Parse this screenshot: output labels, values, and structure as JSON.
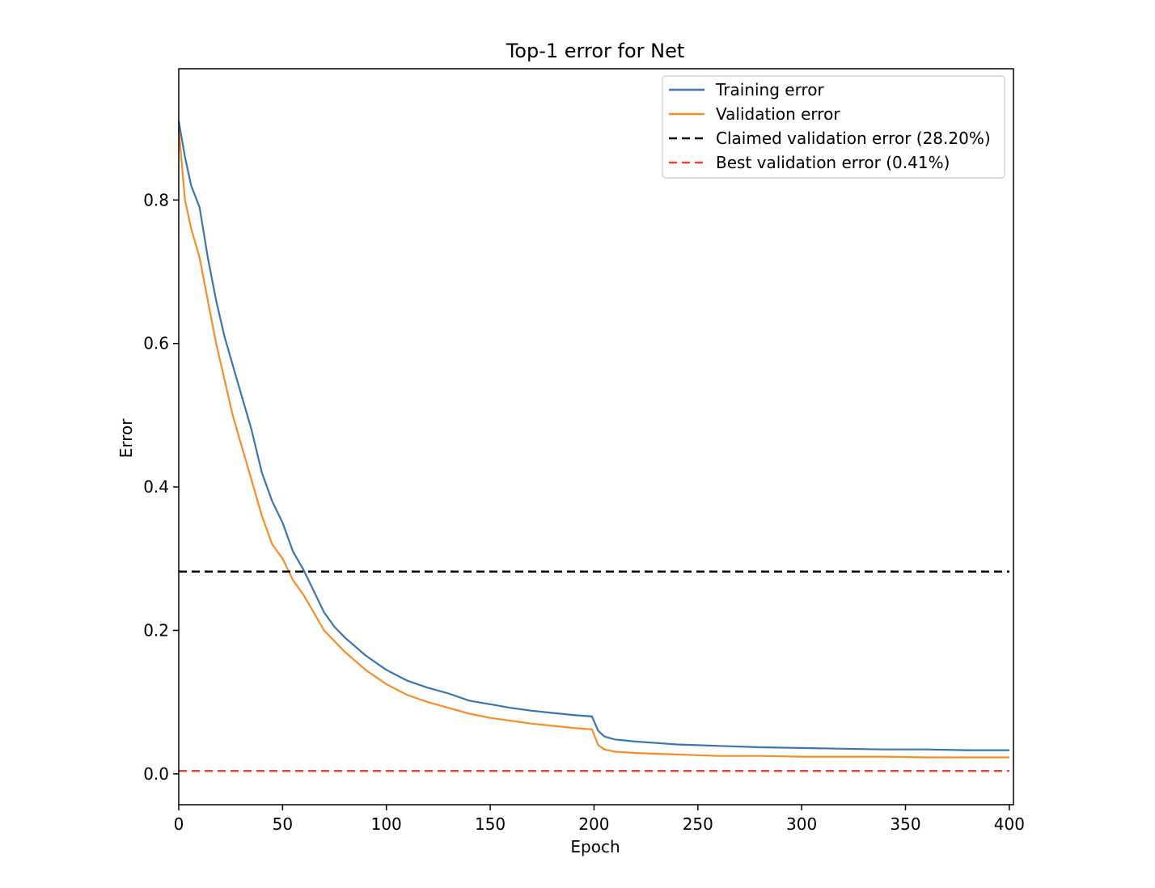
{
  "chart_data": {
    "type": "line",
    "title": "Top-1 error for Net",
    "xlabel": "Epoch",
    "ylabel": "Error",
    "xlim": [
      0,
      402
    ],
    "ylim": [
      -0.043,
      0.983
    ],
    "xticks": [
      0,
      50,
      100,
      150,
      200,
      250,
      300,
      350,
      400
    ],
    "xtick_labels": [
      "0",
      "50",
      "100",
      "150",
      "200",
      "250",
      "300",
      "350",
      "400"
    ],
    "yticks": [
      0.0,
      0.2,
      0.4,
      0.6,
      0.8
    ],
    "ytick_labels": [
      "0.0",
      "0.2",
      "0.4",
      "0.6",
      "0.8"
    ],
    "grid": false,
    "legend_position": "top-right",
    "series": [
      {
        "name": "Training error",
        "color": "#3b75af",
        "style": "solid",
        "x": [
          0,
          3,
          6,
          10,
          14,
          18,
          22,
          26,
          30,
          35,
          40,
          45,
          50,
          55,
          60,
          65,
          70,
          75,
          80,
          90,
          100,
          110,
          120,
          130,
          140,
          150,
          160,
          170,
          180,
          190,
          199,
          202,
          205,
          210,
          220,
          230,
          240,
          250,
          260,
          280,
          300,
          320,
          340,
          360,
          380,
          400
        ],
        "y": [
          0.91,
          0.86,
          0.82,
          0.79,
          0.72,
          0.66,
          0.61,
          0.57,
          0.53,
          0.48,
          0.42,
          0.38,
          0.35,
          0.31,
          0.285,
          0.255,
          0.225,
          0.205,
          0.19,
          0.165,
          0.145,
          0.13,
          0.12,
          0.112,
          0.102,
          0.097,
          0.092,
          0.088,
          0.085,
          0.082,
          0.08,
          0.06,
          0.052,
          0.048,
          0.045,
          0.043,
          0.041,
          0.04,
          0.039,
          0.037,
          0.036,
          0.035,
          0.034,
          0.034,
          0.033,
          0.033
        ]
      },
      {
        "name": "Validation error",
        "color": "#f28e2b",
        "style": "solid",
        "x": [
          0,
          3,
          6,
          10,
          14,
          18,
          22,
          26,
          30,
          35,
          40,
          45,
          50,
          55,
          60,
          65,
          70,
          75,
          80,
          90,
          100,
          110,
          120,
          130,
          140,
          150,
          160,
          170,
          180,
          190,
          199,
          202,
          205,
          210,
          220,
          230,
          240,
          250,
          260,
          280,
          300,
          320,
          340,
          360,
          380,
          400
        ],
        "y": [
          0.9,
          0.8,
          0.76,
          0.72,
          0.66,
          0.6,
          0.55,
          0.5,
          0.46,
          0.41,
          0.36,
          0.32,
          0.3,
          0.27,
          0.25,
          0.225,
          0.2,
          0.185,
          0.17,
          0.145,
          0.125,
          0.11,
          0.1,
          0.092,
          0.084,
          0.078,
          0.074,
          0.07,
          0.067,
          0.064,
          0.062,
          0.04,
          0.034,
          0.031,
          0.029,
          0.028,
          0.027,
          0.026,
          0.025,
          0.025,
          0.024,
          0.024,
          0.024,
          0.023,
          0.023,
          0.023
        ]
      },
      {
        "name": "Claimed validation error (28.20%)",
        "color": "#000000",
        "style": "dashed",
        "x": [
          0,
          400
        ],
        "y": [
          0.282,
          0.282
        ]
      },
      {
        "name": "Best validation error (0.41%)",
        "color": "#e8453c",
        "style": "dashed",
        "x": [
          0,
          400
        ],
        "y": [
          0.0041,
          0.0041
        ]
      }
    ]
  }
}
